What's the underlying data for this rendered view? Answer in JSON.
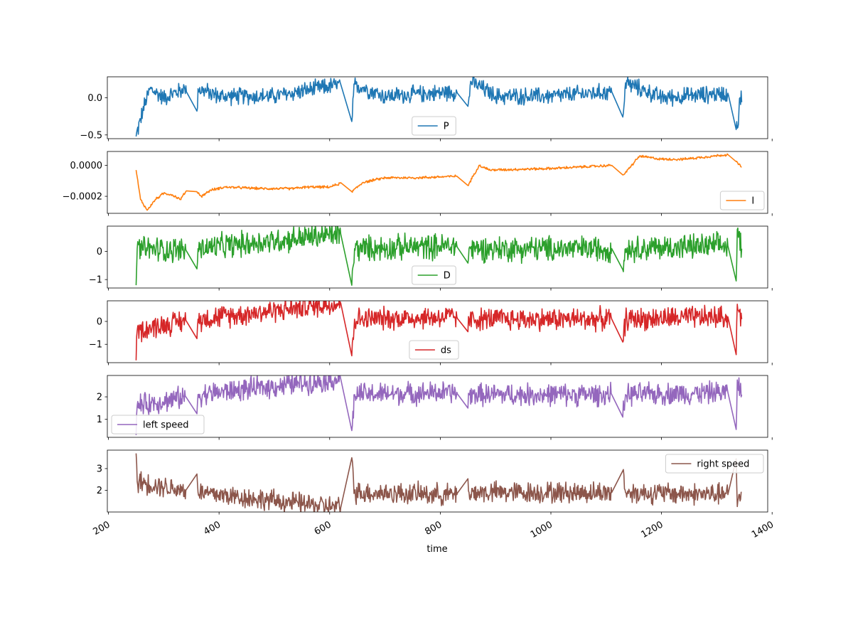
{
  "chart_data": {
    "type": "line",
    "layout": "6 vertically stacked subplots sharing x-axis",
    "xlabel": "time",
    "x_range": [
      250,
      1345
    ],
    "xlim": [
      198,
      1392
    ],
    "xticks": [
      200,
      400,
      600,
      800,
      1000,
      1200,
      1400
    ],
    "xtick_labels": [
      "200",
      "400",
      "600",
      "800",
      "1000",
      "1200",
      "1400"
    ],
    "grid": false,
    "gaps_connected_by_straight_segments": [
      [
        340,
        360
      ],
      [
        620,
        640
      ],
      [
        830,
        850
      ],
      [
        1110,
        1130
      ],
      [
        1320,
        1335
      ]
    ],
    "subplots": [
      {
        "series": "P",
        "color": "#1f77b4",
        "legend": "P",
        "legend_position": "lower-center",
        "ylim": [
          -0.55,
          0.28
        ],
        "yticks": [
          0.0,
          -0.5
        ],
        "ytick_labels": [
          "0.0",
          "−0.5"
        ],
        "points": [
          [
            250,
            -0.52
          ],
          [
            262,
            -0.18
          ],
          [
            275,
            0.12
          ],
          [
            300,
            0.0
          ],
          [
            338,
            0.12
          ],
          [
            360,
            -0.18
          ],
          [
            362,
            0.12
          ],
          [
            400,
            0.02
          ],
          [
            500,
            0.02
          ],
          [
            620,
            0.18
          ],
          [
            640,
            -0.32
          ],
          [
            645,
            0.18
          ],
          [
            700,
            0.02
          ],
          [
            830,
            0.08
          ],
          [
            848,
            -0.3
          ],
          [
            855,
            0.22
          ],
          [
            900,
            0.02
          ],
          [
            1000,
            0.02
          ],
          [
            1110,
            0.08
          ],
          [
            1130,
            -0.26
          ],
          [
            1135,
            0.2
          ],
          [
            1200,
            0.0
          ],
          [
            1320,
            0.06
          ],
          [
            1338,
            -0.4
          ],
          [
            1342,
            0.0
          ]
        ],
        "noise_amplitude": 0.14
      },
      {
        "series": "I",
        "color": "#ff7f0e",
        "legend": "I",
        "legend_position": "lower-right",
        "ylim": [
          -0.00031,
          9e-05
        ],
        "yticks": [
          0.0,
          -0.0002
        ],
        "ytick_labels": [
          "0.0000",
          "−0.0002"
        ],
        "points": [
          [
            250,
            -3e-05
          ],
          [
            258,
            -0.00022
          ],
          [
            270,
            -0.00029
          ],
          [
            285,
            -0.00022
          ],
          [
            300,
            -0.00018
          ],
          [
            315,
            -0.00019
          ],
          [
            330,
            -0.00022
          ],
          [
            342,
            -0.00016
          ],
          [
            360,
            -0.00017
          ],
          [
            368,
            -0.0002
          ],
          [
            385,
            -0.00016
          ],
          [
            410,
            -0.00014
          ],
          [
            480,
            -0.00015
          ],
          [
            530,
            -0.00015
          ],
          [
            560,
            -0.00014
          ],
          [
            600,
            -0.00014
          ],
          [
            625,
            -0.00011
          ],
          [
            640,
            -0.00017
          ],
          [
            660,
            -0.00011
          ],
          [
            700,
            -8e-05
          ],
          [
            760,
            -8e-05
          ],
          [
            830,
            -7e-05
          ],
          [
            850,
            -0.00013
          ],
          [
            870,
            0.0
          ],
          [
            890,
            -3e-05
          ],
          [
            1000,
            -2e-05
          ],
          [
            1110,
            0.0
          ],
          [
            1132,
            -6e-05
          ],
          [
            1160,
            6e-05
          ],
          [
            1200,
            4e-05
          ],
          [
            1240,
            4e-05
          ],
          [
            1320,
            7e-05
          ],
          [
            1345,
            -1e-05
          ]
        ],
        "noise_amplitude": 1e-05
      },
      {
        "series": "D",
        "color": "#2ca02c",
        "legend": "D",
        "legend_position": "lower-center",
        "ylim": [
          -1.3,
          0.9
        ],
        "yticks": [
          0,
          -1
        ],
        "ytick_labels": [
          "0",
          "−1"
        ],
        "points": [
          [
            250,
            -1.2
          ],
          [
            252,
            0.1
          ],
          [
            340,
            0.05
          ],
          [
            360,
            -0.62
          ],
          [
            362,
            0.1
          ],
          [
            620,
            0.62
          ],
          [
            640,
            -1.2
          ],
          [
            645,
            0.1
          ],
          [
            830,
            0.2
          ],
          [
            848,
            -0.85
          ],
          [
            852,
            0.1
          ],
          [
            1110,
            0.1
          ],
          [
            1130,
            -0.65
          ],
          [
            1135,
            0.1
          ],
          [
            1320,
            0.2
          ],
          [
            1335,
            -1.05
          ],
          [
            1337,
            0.78
          ],
          [
            1345,
            0.1
          ]
        ],
        "noise_amplitude": 0.55
      },
      {
        "series": "ds",
        "color": "#d62728",
        "legend": "ds",
        "legend_position": "lower-center",
        "ylim": [
          -1.8,
          0.9
        ],
        "yticks": [
          0,
          -1
        ],
        "ytick_labels": [
          "0",
          "−1"
        ],
        "points": [
          [
            250,
            -1.7
          ],
          [
            252,
            -0.4
          ],
          [
            340,
            0.05
          ],
          [
            360,
            -0.75
          ],
          [
            362,
            0.1
          ],
          [
            620,
            0.8
          ],
          [
            640,
            -1.5
          ],
          [
            645,
            0.1
          ],
          [
            830,
            0.2
          ],
          [
            848,
            -1.1
          ],
          [
            852,
            0.1
          ],
          [
            1110,
            0.1
          ],
          [
            1130,
            -0.9
          ],
          [
            1135,
            0.1
          ],
          [
            1320,
            0.2
          ],
          [
            1335,
            -1.45
          ],
          [
            1337,
            0.75
          ],
          [
            1345,
            0.1
          ]
        ],
        "noise_amplitude": 0.6
      },
      {
        "series": "left speed",
        "color": "#9467bd",
        "legend": "left speed",
        "legend_position": "lower-left",
        "ylim": [
          0.2,
          2.95
        ],
        "yticks": [
          2,
          1
        ],
        "ytick_labels": [
          "2",
          "1"
        ],
        "points": [
          [
            250,
            0.3
          ],
          [
            252,
            1.6
          ],
          [
            340,
            2.0
          ],
          [
            360,
            1.25
          ],
          [
            362,
            2.1
          ],
          [
            620,
            2.8
          ],
          [
            640,
            0.5
          ],
          [
            645,
            2.1
          ],
          [
            830,
            2.2
          ],
          [
            848,
            0.9
          ],
          [
            852,
            2.1
          ],
          [
            1110,
            2.1
          ],
          [
            1130,
            1.1
          ],
          [
            1135,
            2.1
          ],
          [
            1320,
            2.2
          ],
          [
            1335,
            0.55
          ],
          [
            1337,
            2.75
          ],
          [
            1345,
            2.1
          ]
        ],
        "noise_amplitude": 0.6
      },
      {
        "series": "right speed",
        "color": "#8c564b",
        "legend": "right speed",
        "legend_position": "upper-right",
        "ylim": [
          1.0,
          3.85
        ],
        "yticks": [
          3,
          2
        ],
        "ytick_labels": [
          "3",
          "2"
        ],
        "points": [
          [
            250,
            3.7
          ],
          [
            252,
            2.4
          ],
          [
            340,
            2.0
          ],
          [
            360,
            2.75
          ],
          [
            362,
            1.9
          ],
          [
            620,
            1.2
          ],
          [
            640,
            3.5
          ],
          [
            645,
            1.9
          ],
          [
            830,
            1.8
          ],
          [
            848,
            3.1
          ],
          [
            852,
            1.9
          ],
          [
            1110,
            1.9
          ],
          [
            1130,
            2.9
          ],
          [
            1135,
            1.9
          ],
          [
            1320,
            1.8
          ],
          [
            1335,
            3.45
          ],
          [
            1337,
            1.25
          ],
          [
            1345,
            1.9
          ]
        ],
        "noise_amplitude": 0.6
      }
    ]
  }
}
